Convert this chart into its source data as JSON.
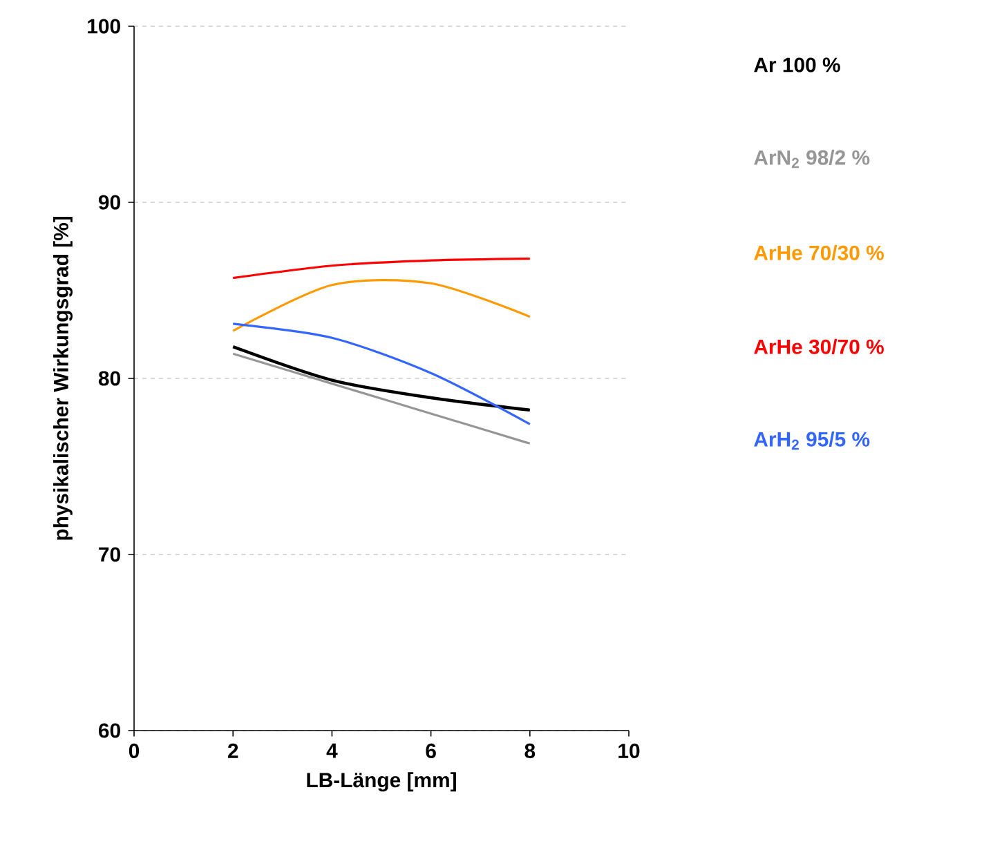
{
  "chart_data": {
    "type": "line",
    "xlabel": "LB-Länge [mm]",
    "ylabel": "physikalischer Wirkungsgrad [%]",
    "x": [
      2,
      4,
      6,
      8
    ],
    "series": [
      {
        "name": "Ar 100 %",
        "color": "#000000",
        "values": [
          81.8,
          79.9,
          78.9,
          78.2
        ]
      },
      {
        "name": "ArN$_{2}$ 98/2 %",
        "color": "#969696",
        "values": [
          81.4,
          79.7,
          78.0,
          76.3
        ]
      },
      {
        "name": "ArHe 70/30 %",
        "color": "#ff9900",
        "values": [
          82.7,
          85.3,
          85.4,
          83.5
        ]
      },
      {
        "name": "ArHe 30/70 %",
        "color": "#ff0000",
        "values": [
          85.7,
          86.4,
          86.7,
          86.8
        ]
      },
      {
        "name": "ArH$_{2}$ 95/5 %",
        "color": "#3366ff",
        "values": [
          83.1,
          82.3,
          80.3,
          77.4
        ]
      }
    ],
    "xlim": [
      0,
      10
    ],
    "ylim": [
      60,
      100
    ],
    "xticks": [
      0,
      2,
      4,
      6,
      8,
      10
    ],
    "yticks": [
      60,
      70,
      80,
      90,
      100
    ],
    "grid": "y",
    "legend": "right",
    "marker": "none",
    "line_style": "solid"
  }
}
